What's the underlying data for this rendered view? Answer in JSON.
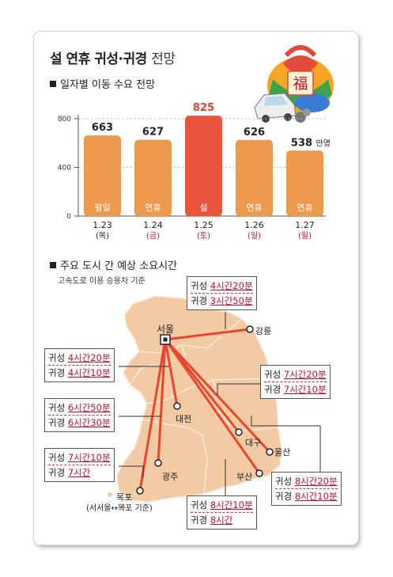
{
  "title": {
    "main": "설 연휴 귀성·귀경",
    "sub": "전망"
  },
  "section1": "일자별 이동 수요 전망",
  "section2": "주요 도시 간 예상 소요시간",
  "note": "고속도로 이용 승용차 기준",
  "chart_data": {
    "type": "bar",
    "unit": "만명",
    "ylim": [
      0,
      900
    ],
    "yticks": [
      0,
      400,
      800
    ],
    "highlight_color": "#e8553a",
    "bar_color": "#ec9a4c",
    "bars": [
      {
        "value": 663,
        "inner": "평일",
        "date": "1.23",
        "day": "(목)",
        "day_color": "#222222",
        "highlight": false
      },
      {
        "value": 627,
        "inner": "연휴",
        "date": "1.24",
        "day": "(금)",
        "day_color": "#c8102e",
        "highlight": false
      },
      {
        "value": 825,
        "inner": "설",
        "date": "1.25",
        "day": "(토)",
        "day_color": "#c8102e",
        "highlight": true
      },
      {
        "value": 626,
        "inner": "연휴",
        "date": "1.26",
        "day": "(일)",
        "day_color": "#c8102e",
        "highlight": false
      },
      {
        "value": 538,
        "inner": "연휴",
        "date": "1.27",
        "day": "(월)",
        "day_color": "#c8102e",
        "highlight": false
      }
    ]
  },
  "map": {
    "cities": {
      "seoul": "서울",
      "gangneung": "강릉",
      "daejeon": "대전",
      "daegu": "대구",
      "ulsan": "울산",
      "busan": "부산",
      "gwangju": "광주",
      "mokpo": "목포",
      "mokpo_note": "(서서울↔목포 기준)"
    },
    "routes": [
      {
        "id": "gangneung",
        "rows": [
          {
            "k": "귀성",
            "v": "4시간20분"
          },
          {
            "k": "귀경",
            "v": "3시간50분"
          }
        ]
      },
      {
        "id": "daejeon",
        "rows": [
          {
            "k": "귀성",
            "v": "4시간20분"
          },
          {
            "k": "귀경",
            "v": "4시간10분"
          }
        ]
      },
      {
        "id": "daegu",
        "rows": [
          {
            "k": "귀성",
            "v": "7시간20분"
          },
          {
            "k": "귀경",
            "v": "7시간10분"
          }
        ]
      },
      {
        "id": "gwangju",
        "rows": [
          {
            "k": "귀성",
            "v": "6시간50분"
          },
          {
            "k": "귀경",
            "v": "6시간30분"
          }
        ]
      },
      {
        "id": "mokpo",
        "rows": [
          {
            "k": "귀성",
            "v": "7시간10분"
          },
          {
            "k": "귀경",
            "v": "7시간"
          }
        ]
      },
      {
        "id": "busan",
        "rows": [
          {
            "k": "귀성",
            "v": "8시간10분"
          },
          {
            "k": "귀경",
            "v": "8시간"
          }
        ]
      },
      {
        "id": "ulsan",
        "rows": [
          {
            "k": "귀성",
            "v": "8시간20분"
          },
          {
            "k": "귀경",
            "v": "8시간10분"
          }
        ]
      }
    ]
  },
  "icon": {
    "fortune_char": "福"
  }
}
